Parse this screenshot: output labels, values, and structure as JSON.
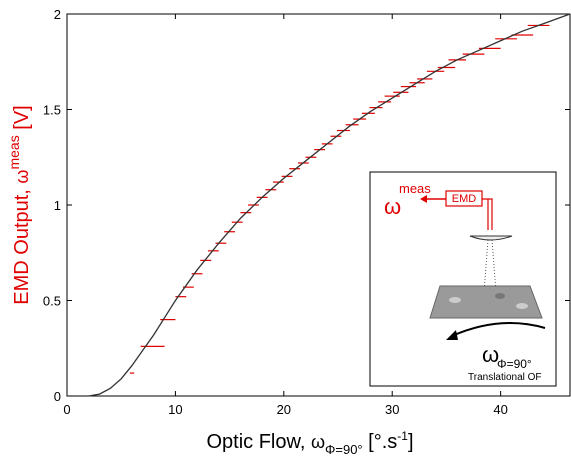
{
  "chart_data": {
    "type": "scatter",
    "xlabel": [
      "Optic Flow, ",
      "ω",
      "Φ=90°",
      " [°.s",
      "-1",
      "]"
    ],
    "ylabel": [
      "EMD Output, ",
      "ω",
      "meas",
      " [V]"
    ],
    "xlim": [
      0,
      46.4
    ],
    "ylim": [
      0,
      2
    ],
    "xticks": [
      0,
      10,
      20,
      30,
      40
    ],
    "yticks": [
      0,
      0.5,
      1,
      1.5,
      2
    ],
    "series": [
      {
        "type": "errorbar",
        "color": "#e00000",
        "x": [
          6,
          7.9,
          9.3,
          10.5,
          11.2,
          12,
          12.8,
          13.5,
          14.2,
          15,
          15.7,
          16.5,
          17.2,
          18,
          18.8,
          19.5,
          20.3,
          21,
          21.8,
          22.5,
          23.3,
          24,
          24.8,
          25.5,
          26.3,
          27,
          27.8,
          28.5,
          29.3,
          30,
          30.8,
          31.5,
          32.3,
          33,
          34,
          35,
          36,
          37.5,
          39,
          40.5,
          42,
          43.5
        ],
        "values": [
          0.12,
          0.26,
          0.4,
          0.52,
          0.57,
          0.64,
          0.71,
          0.76,
          0.8,
          0.86,
          0.91,
          0.96,
          1,
          1.04,
          1.08,
          1.12,
          1.15,
          1.19,
          1.22,
          1.25,
          1.29,
          1.32,
          1.36,
          1.39,
          1.42,
          1.45,
          1.48,
          1.51,
          1.54,
          1.57,
          1.59,
          1.62,
          1.64,
          1.66,
          1.7,
          1.72,
          1.76,
          1.79,
          1.82,
          1.87,
          1.89,
          1.94
        ],
        "xerr": [
          0.2,
          1.1,
          0.7,
          0.5,
          0.5,
          0.5,
          0.5,
          0.5,
          0.5,
          0.5,
          0.5,
          0.5,
          0.5,
          0.5,
          0.5,
          0.5,
          0.5,
          0.5,
          0.5,
          0.5,
          0.5,
          0.5,
          0.5,
          0.6,
          0.6,
          0.6,
          0.6,
          0.6,
          0.6,
          0.7,
          0.7,
          0.7,
          0.7,
          0.7,
          0.8,
          0.8,
          0.8,
          1,
          1,
          1,
          1,
          1
        ]
      },
      {
        "type": "line",
        "color": "#333333",
        "x": [
          0,
          2,
          3,
          4,
          5,
          6,
          7,
          8,
          9,
          10,
          12,
          14,
          16,
          18,
          20,
          22,
          24,
          26,
          28,
          30,
          32,
          34,
          36,
          38,
          40,
          42,
          44,
          46.4
        ],
        "values": [
          0,
          0,
          0.01,
          0.04,
          0.09,
          0.16,
          0.24,
          0.32,
          0.41,
          0.5,
          0.66,
          0.8,
          0.93,
          1.04,
          1.14,
          1.23,
          1.32,
          1.41,
          1.49,
          1.56,
          1.63,
          1.7,
          1.76,
          1.81,
          1.86,
          1.91,
          1.95,
          2
        ]
      }
    ],
    "inset": {
      "output_symbol": "ω",
      "output_superscript": "meas",
      "box": "EMD",
      "flow_symbol": "ω",
      "flow_subscript": "Φ=90°",
      "caption": "Translational OF"
    }
  }
}
